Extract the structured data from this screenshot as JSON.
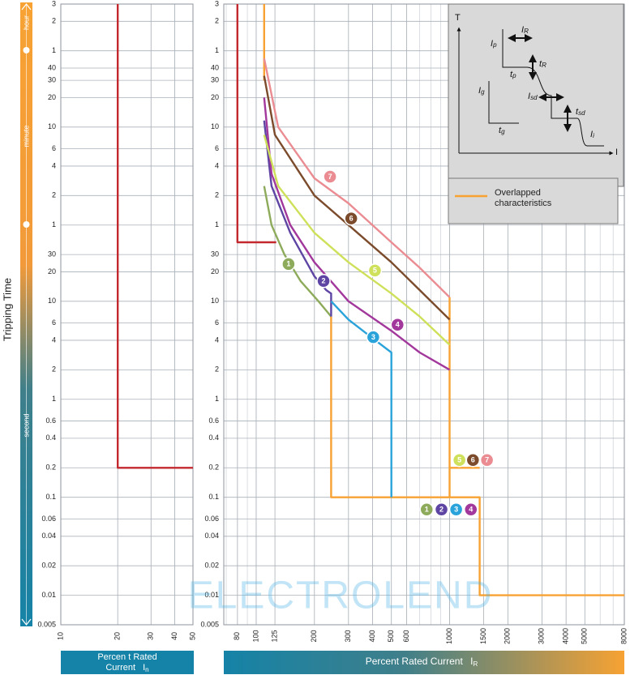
{
  "chart_data": [
    {
      "type": "line",
      "ylabel": "Tripping Time",
      "time_units": [
        "hour",
        "minute",
        "second"
      ],
      "xlim": [
        10,
        50
      ],
      "ylim": [
        0.005,
        10800
      ],
      "log_x": true,
      "log_y": true,
      "grid": true,
      "xticks": [
        10,
        20,
        30,
        40,
        50
      ],
      "yticks": [
        {
          "value": 10800,
          "label": "3"
        },
        {
          "value": 7200,
          "label": "2"
        },
        {
          "value": 3600,
          "label": "1"
        },
        {
          "value": 2400,
          "label": "40"
        },
        {
          "value": 1800,
          "label": "30"
        },
        {
          "value": 1200,
          "label": "20"
        },
        {
          "value": 600,
          "label": "10"
        },
        {
          "value": 360,
          "label": "6"
        },
        {
          "value": 240,
          "label": "4"
        },
        {
          "value": 120,
          "label": "2"
        },
        {
          "value": 60,
          "label": "1"
        },
        30,
        20,
        10,
        6,
        4,
        2,
        1,
        0.6,
        0.4,
        0.2,
        0.1,
        0.06,
        0.04,
        0.02,
        0.01,
        0.005
      ],
      "xlabel": [
        "Percen t Rated",
        "Current"
      ],
      "xlabel_symbol": {
        "main": "I",
        "sub": "n"
      },
      "series": [
        {
          "color": "#c3282e",
          "x": [
            20,
            20,
            50
          ],
          "y": [
            10800,
            0.2,
            0.2
          ]
        }
      ]
    },
    {
      "type": "line",
      "xlim": [
        68,
        8000
      ],
      "ylim": [
        0.005,
        10800
      ],
      "log_x": true,
      "log_y": true,
      "grid": true,
      "xticks": [
        80,
        100,
        125,
        200,
        300,
        400,
        500,
        600,
        1000,
        1500,
        2000,
        3000,
        4000,
        5000,
        8000
      ],
      "xlabel": "Percent Rated Current",
      "xlabel_symbol": {
        "main": "I",
        "sub": "R"
      },
      "series": [
        {
          "color": "#c3282e",
          "x": [
            80,
            80,
            127
          ],
          "y": [
            10800,
            40,
            40
          ]
        },
        {
          "name": "Overlapped characteristics",
          "color": "#f7a233",
          "x": [
            110,
            110,
            null,
            244,
            244,
            1430,
            1430,
            8000,
            null,
            1000,
            1000,
            null,
            1000,
            1430
          ],
          "y": [
            10800,
            1800,
            null,
            7,
            0.1,
            0.1,
            0.01,
            0.01,
            null,
            11,
            0.1,
            null,
            0.2,
            0.2
          ]
        },
        {
          "color": "#8dab5b",
          "x": [
            110,
            120,
            140,
            170,
            210,
            244
          ],
          "y": [
            150,
            60,
            30,
            16,
            10,
            7
          ]
        },
        {
          "color": "#5e45a3",
          "x": [
            110,
            120,
            150,
            200,
            230,
            244,
            244
          ],
          "y": [
            700,
            150,
            50,
            18,
            13,
            12,
            7
          ]
        },
        {
          "color": "#2aa3da",
          "x": [
            244,
            300,
            400,
            500,
            500
          ],
          "y": [
            10,
            6.5,
            4.2,
            3,
            0.1
          ]
        },
        {
          "color": "#a2379c",
          "x": [
            110,
            120,
            150,
            200,
            300,
            500,
            700,
            1000
          ],
          "y": [
            1200,
            200,
            60,
            25,
            10,
            5,
            3,
            2
          ]
        },
        {
          "color": "#cfe05a",
          "x": [
            110,
            130,
            200,
            300,
            500,
            700,
            1000
          ],
          "y": [
            500,
            150,
            50,
            25,
            12,
            7,
            3.6
          ]
        },
        {
          "color": "#7b4b2c",
          "x": [
            110,
            125,
            200,
            300,
            500,
            700,
            1000
          ],
          "y": [
            2000,
            500,
            120,
            60,
            25,
            13,
            6.5
          ]
        },
        {
          "color": "#ea8c92",
          "x": [
            110,
            130,
            200,
            300,
            500,
            700,
            1000
          ],
          "y": [
            3000,
            600,
            180,
            100,
            40,
            22,
            11
          ]
        }
      ],
      "annotations": [
        {
          "text": "7",
          "x": 241,
          "y": 187,
          "color": "#ea8c92"
        },
        {
          "text": "6",
          "x": 310,
          "y": 70,
          "color": "#7b4b2c"
        },
        {
          "text": "5",
          "x": 411,
          "y": 20.6,
          "color": "#cfe05a"
        },
        {
          "text": "1",
          "x": 147,
          "y": 24,
          "color": "#8dab5b"
        },
        {
          "text": "2",
          "x": 223,
          "y": 16.1,
          "color": "#5e45a3"
        },
        {
          "text": "4",
          "x": 538,
          "y": 5.76,
          "color": "#a2379c"
        },
        {
          "text": "3",
          "x": 403,
          "y": 4.3,
          "color": "#2aa3da"
        },
        {
          "text": "5",
          "x": 1124,
          "y": 0.24,
          "color": "#cfe05a"
        },
        {
          "text": "6",
          "x": 1320,
          "y": 0.24,
          "color": "#7b4b2c"
        },
        {
          "text": "7",
          "x": 1560,
          "y": 0.24,
          "color": "#ea8c92"
        },
        {
          "text": "1",
          "x": 761,
          "y": 0.075,
          "color": "#8dab5b"
        },
        {
          "text": "2",
          "x": 908,
          "y": 0.075,
          "color": "#5e45a3"
        },
        {
          "text": "3",
          "x": 1081,
          "y": 0.075,
          "color": "#2aa3da"
        },
        {
          "text": "4",
          "x": 1288,
          "y": 0.075,
          "color": "#a2379c"
        }
      ],
      "inset": [
        {
          "main": "T"
        },
        {
          "main": "I"
        },
        {
          "main": "I",
          "sub": "R"
        },
        {
          "main": "t",
          "sub": "R"
        },
        {
          "main": "I",
          "sub": "p"
        },
        {
          "main": "t",
          "sub": "p"
        },
        {
          "main": "I",
          "sub": "g"
        },
        {
          "main": "t",
          "sub": "g"
        },
        {
          "main": "I",
          "sub": "sd"
        },
        {
          "main": "t",
          "sub": "sd"
        },
        {
          "main": "I",
          "sub": "i"
        }
      ],
      "watermark": "ELECTROLEND"
    }
  ]
}
